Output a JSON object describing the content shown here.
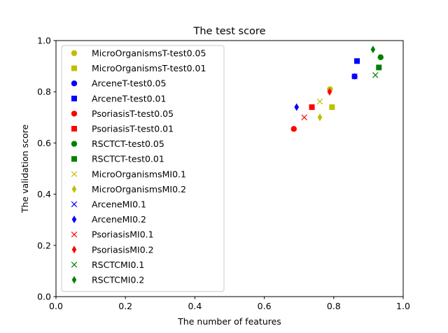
{
  "chart_data": {
    "type": "scatter",
    "title": "The test score",
    "xlabel": "The number of features",
    "ylabel": "The validation score",
    "xlim": [
      0,
      1
    ],
    "ylim": [
      0,
      1
    ],
    "xticks": [
      "0.0",
      "0.2",
      "0.4",
      "0.6",
      "0.8",
      "1.0"
    ],
    "yticks": [
      "0.0",
      "0.2",
      "0.4",
      "0.6",
      "0.8",
      "1.0"
    ],
    "grid": false,
    "legend_position": "upper-left",
    "series": [
      {
        "name": "MicroOrganismsT-test0.05",
        "marker": "circle",
        "color": "#bfbf00",
        "points": [
          [
            0.789,
            0.81
          ]
        ]
      },
      {
        "name": "MicroOrganismsT-test0.01",
        "marker": "square",
        "color": "#bfbf00",
        "points": [
          [
            0.795,
            0.74
          ]
        ]
      },
      {
        "name": "ArceneT-test0.05",
        "marker": "circle",
        "color": "#0000ff",
        "points": [
          [
            0.86,
            0.86
          ]
        ]
      },
      {
        "name": "ArceneT-test0.01",
        "marker": "square",
        "color": "#0000ff",
        "points": [
          [
            0.867,
            0.92
          ]
        ]
      },
      {
        "name": "PsoriasisT-test0.05",
        "marker": "circle",
        "color": "#ff0000",
        "points": [
          [
            0.685,
            0.655
          ]
        ]
      },
      {
        "name": "PsoriasisT-test0.01",
        "marker": "square",
        "color": "#ff0000",
        "points": [
          [
            0.737,
            0.74
          ]
        ]
      },
      {
        "name": "RSCTCT-test0.05",
        "marker": "circle",
        "color": "#008000",
        "points": [
          [
            0.935,
            0.935
          ]
        ]
      },
      {
        "name": "RSCTCT-test0.01",
        "marker": "square",
        "color": "#008000",
        "points": [
          [
            0.93,
            0.895
          ]
        ]
      },
      {
        "name": "MicroOrganismsMI0.1",
        "marker": "x",
        "color": "#bfbf00",
        "points": [
          [
            0.76,
            0.762
          ]
        ]
      },
      {
        "name": "MicroOrganismsMI0.2",
        "marker": "thin_diamond",
        "color": "#bfbf00",
        "points": [
          [
            0.76,
            0.7
          ]
        ]
      },
      {
        "name": "ArceneMI0.1",
        "marker": "x",
        "color": "#0000ff",
        "points": [
          [
            0.86,
            0.86
          ]
        ]
      },
      {
        "name": "ArceneMI0.2",
        "marker": "thin_diamond",
        "color": "#0000ff",
        "points": [
          [
            0.693,
            0.74
          ]
        ]
      },
      {
        "name": "PsoriasisMI0.1",
        "marker": "x",
        "color": "#ff0000",
        "points": [
          [
            0.715,
            0.7
          ]
        ]
      },
      {
        "name": "PsoriasisMI0.2",
        "marker": "thin_diamond",
        "color": "#ff0000",
        "points": [
          [
            0.788,
            0.8
          ]
        ]
      },
      {
        "name": "RSCTCMI0.1",
        "marker": "x",
        "color": "#008000",
        "points": [
          [
            0.92,
            0.865
          ]
        ]
      },
      {
        "name": "RSCTCMI0.2",
        "marker": "thin_diamond",
        "color": "#008000",
        "points": [
          [
            0.913,
            0.965
          ]
        ]
      }
    ]
  }
}
